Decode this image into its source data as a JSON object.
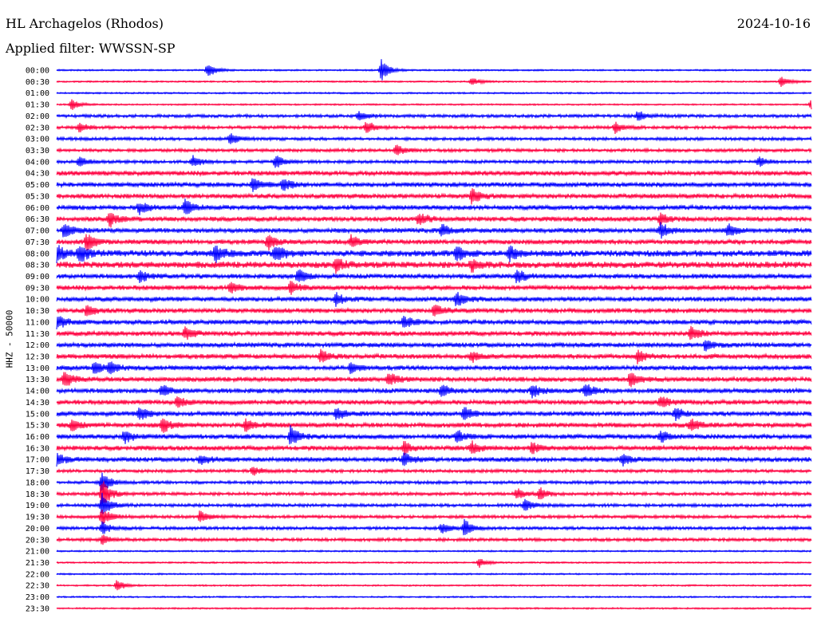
{
  "header": {
    "title": "HL Archagelos (Rhodos)",
    "date": "2024-10-16",
    "filter": "Applied filter: WWSSN-SP"
  },
  "chart_data": {
    "type": "line",
    "title": "HL Archagelos (Rhodos)",
    "subtitle": "Applied filter: WWSSN-SP",
    "ylabel": "HHZ - 50000",
    "xlabel": "",
    "grid": false,
    "colors": [
      "#0000ff",
      "#ff0040"
    ],
    "rows": [
      "00:00",
      "00:30",
      "01:00",
      "01:30",
      "02:00",
      "02:30",
      "03:00",
      "03:30",
      "04:00",
      "04:30",
      "05:00",
      "05:30",
      "06:00",
      "06:30",
      "07:00",
      "07:30",
      "08:00",
      "08:30",
      "09:00",
      "09:30",
      "10:00",
      "10:30",
      "11:00",
      "11:30",
      "12:00",
      "12:30",
      "13:00",
      "13:30",
      "14:00",
      "14:30",
      "15:00",
      "15:30",
      "16:00",
      "16:30",
      "17:00",
      "17:30",
      "18:00",
      "18:30",
      "19:00",
      "19:30",
      "20:00",
      "20:30",
      "21:00",
      "21:30",
      "22:00",
      "22:30",
      "23:00",
      "23:30"
    ],
    "noise_level": [
      1,
      1,
      1,
      1,
      2,
      2,
      2,
      2,
      2,
      3,
      3,
      3,
      3,
      3,
      3,
      3,
      4,
      4,
      3,
      3,
      3,
      3,
      3,
      3,
      3,
      3,
      3,
      3,
      3,
      3,
      3,
      3,
      3,
      3,
      3,
      2,
      2,
      2,
      2,
      2,
      2,
      2,
      1,
      1,
      1,
      1,
      1,
      1
    ],
    "events": [
      {
        "row": 0,
        "x": 0.2,
        "amp": 1.2
      },
      {
        "row": 0,
        "x": 0.43,
        "amp": 1.8
      },
      {
        "row": 1,
        "x": 0.55,
        "amp": 0.7
      },
      {
        "row": 1,
        "x": 0.96,
        "amp": 1.0
      },
      {
        "row": 3,
        "x": 0.02,
        "amp": 0.9
      },
      {
        "row": 3,
        "x": 1.0,
        "amp": 1.0
      },
      {
        "row": 4,
        "x": 0.4,
        "amp": 0.8
      },
      {
        "row": 4,
        "x": 0.77,
        "amp": 0.9
      },
      {
        "row": 5,
        "x": 0.03,
        "amp": 0.8
      },
      {
        "row": 5,
        "x": 0.41,
        "amp": 1.1
      },
      {
        "row": 5,
        "x": 0.74,
        "amp": 0.8
      },
      {
        "row": 6,
        "x": 0.23,
        "amp": 1.0
      },
      {
        "row": 7,
        "x": 0.45,
        "amp": 0.9
      },
      {
        "row": 8,
        "x": 0.03,
        "amp": 0.8
      },
      {
        "row": 8,
        "x": 0.18,
        "amp": 1.0
      },
      {
        "row": 8,
        "x": 0.29,
        "amp": 1.2
      },
      {
        "row": 8,
        "x": 0.93,
        "amp": 0.8
      },
      {
        "row": 10,
        "x": 0.26,
        "amp": 1.1
      },
      {
        "row": 10,
        "x": 0.3,
        "amp": 1.0
      },
      {
        "row": 11,
        "x": 0.55,
        "amp": 1.2
      },
      {
        "row": 12,
        "x": 0.11,
        "amp": 1.0
      },
      {
        "row": 12,
        "x": 0.17,
        "amp": 1.3
      },
      {
        "row": 13,
        "x": 0.07,
        "amp": 1.2
      },
      {
        "row": 13,
        "x": 0.48,
        "amp": 1.1
      },
      {
        "row": 13,
        "x": 0.8,
        "amp": 1.0
      },
      {
        "row": 14,
        "x": 0.01,
        "amp": 1.3
      },
      {
        "row": 14,
        "x": 0.51,
        "amp": 1.1
      },
      {
        "row": 14,
        "x": 0.8,
        "amp": 1.2
      },
      {
        "row": 14,
        "x": 0.89,
        "amp": 1.0
      },
      {
        "row": 15,
        "x": 0.04,
        "amp": 1.5
      },
      {
        "row": 15,
        "x": 0.28,
        "amp": 1.3
      },
      {
        "row": 15,
        "x": 0.39,
        "amp": 1.0
      },
      {
        "row": 16,
        "x": 0.0,
        "amp": 1.5
      },
      {
        "row": 16,
        "x": 0.03,
        "amp": 1.4
      },
      {
        "row": 16,
        "x": 0.21,
        "amp": 1.3
      },
      {
        "row": 16,
        "x": 0.29,
        "amp": 1.4
      },
      {
        "row": 16,
        "x": 0.53,
        "amp": 1.2
      },
      {
        "row": 16,
        "x": 0.6,
        "amp": 1.2
      },
      {
        "row": 17,
        "x": 0.37,
        "amp": 1.1
      },
      {
        "row": 17,
        "x": 0.55,
        "amp": 1.0
      },
      {
        "row": 18,
        "x": 0.11,
        "amp": 1.0
      },
      {
        "row": 18,
        "x": 0.32,
        "amp": 1.2
      },
      {
        "row": 18,
        "x": 0.61,
        "amp": 1.1
      },
      {
        "row": 19,
        "x": 0.23,
        "amp": 1.0
      },
      {
        "row": 19,
        "x": 0.31,
        "amp": 1.0
      },
      {
        "row": 20,
        "x": 0.37,
        "amp": 0.9
      },
      {
        "row": 20,
        "x": 0.53,
        "amp": 1.3
      },
      {
        "row": 21,
        "x": 0.04,
        "amp": 1.0
      },
      {
        "row": 21,
        "x": 0.5,
        "amp": 1.0
      },
      {
        "row": 22,
        "x": 0.0,
        "amp": 1.2
      },
      {
        "row": 22,
        "x": 0.46,
        "amp": 1.0
      },
      {
        "row": 23,
        "x": 0.17,
        "amp": 1.0
      },
      {
        "row": 23,
        "x": 0.84,
        "amp": 1.1
      },
      {
        "row": 24,
        "x": 0.86,
        "amp": 1.0
      },
      {
        "row": 25,
        "x": 0.35,
        "amp": 1.0
      },
      {
        "row": 25,
        "x": 0.55,
        "amp": 0.9
      },
      {
        "row": 25,
        "x": 0.77,
        "amp": 1.0
      },
      {
        "row": 26,
        "x": 0.05,
        "amp": 1.0
      },
      {
        "row": 26,
        "x": 0.07,
        "amp": 1.0
      },
      {
        "row": 26,
        "x": 0.39,
        "amp": 0.9
      },
      {
        "row": 27,
        "x": 0.01,
        "amp": 1.3
      },
      {
        "row": 27,
        "x": 0.44,
        "amp": 1.0
      },
      {
        "row": 27,
        "x": 0.76,
        "amp": 1.2
      },
      {
        "row": 28,
        "x": 0.14,
        "amp": 1.0
      },
      {
        "row": 28,
        "x": 0.51,
        "amp": 1.0
      },
      {
        "row": 28,
        "x": 0.63,
        "amp": 1.1
      },
      {
        "row": 28,
        "x": 0.7,
        "amp": 1.3
      },
      {
        "row": 29,
        "x": 0.16,
        "amp": 1.0
      },
      {
        "row": 29,
        "x": 0.8,
        "amp": 1.0
      },
      {
        "row": 30,
        "x": 0.11,
        "amp": 1.2
      },
      {
        "row": 30,
        "x": 0.37,
        "amp": 1.0
      },
      {
        "row": 30,
        "x": 0.54,
        "amp": 1.1
      },
      {
        "row": 30,
        "x": 0.82,
        "amp": 1.0
      },
      {
        "row": 31,
        "x": 0.02,
        "amp": 1.0
      },
      {
        "row": 31,
        "x": 0.14,
        "amp": 1.2
      },
      {
        "row": 31,
        "x": 0.25,
        "amp": 1.0
      },
      {
        "row": 31,
        "x": 0.84,
        "amp": 1.0
      },
      {
        "row": 32,
        "x": 0.09,
        "amp": 1.0
      },
      {
        "row": 32,
        "x": 0.31,
        "amp": 1.6
      },
      {
        "row": 32,
        "x": 0.53,
        "amp": 1.0
      },
      {
        "row": 32,
        "x": 0.8,
        "amp": 1.0
      },
      {
        "row": 33,
        "x": 0.46,
        "amp": 1.0
      },
      {
        "row": 33,
        "x": 0.55,
        "amp": 1.0
      },
      {
        "row": 33,
        "x": 0.63,
        "amp": 1.0
      },
      {
        "row": 34,
        "x": 0.0,
        "amp": 1.0
      },
      {
        "row": 34,
        "x": 0.19,
        "amp": 0.8
      },
      {
        "row": 34,
        "x": 0.46,
        "amp": 1.0
      },
      {
        "row": 34,
        "x": 0.75,
        "amp": 0.9
      },
      {
        "row": 35,
        "x": 0.26,
        "amp": 0.8
      },
      {
        "row": 36,
        "x": 0.06,
        "amp": 1.8
      },
      {
        "row": 37,
        "x": 0.06,
        "amp": 2.5
      },
      {
        "row": 37,
        "x": 0.61,
        "amp": 0.9
      },
      {
        "row": 37,
        "x": 0.64,
        "amp": 0.9
      },
      {
        "row": 38,
        "x": 0.06,
        "amp": 2.0
      },
      {
        "row": 38,
        "x": 0.62,
        "amp": 1.0
      },
      {
        "row": 39,
        "x": 0.06,
        "amp": 1.5
      },
      {
        "row": 39,
        "x": 0.19,
        "amp": 1.1
      },
      {
        "row": 40,
        "x": 0.06,
        "amp": 1.0
      },
      {
        "row": 40,
        "x": 0.51,
        "amp": 0.9
      },
      {
        "row": 40,
        "x": 0.54,
        "amp": 1.4
      },
      {
        "row": 41,
        "x": 0.06,
        "amp": 0.8
      },
      {
        "row": 43,
        "x": 0.56,
        "amp": 0.8
      },
      {
        "row": 45,
        "x": 0.08,
        "amp": 0.9
      }
    ]
  }
}
